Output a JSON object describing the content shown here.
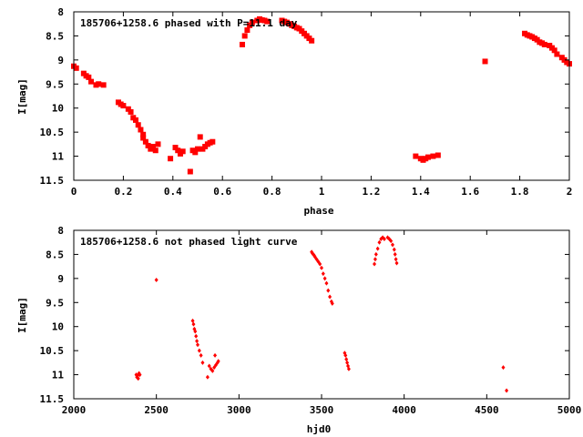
{
  "colors": {
    "series": "#ff0000",
    "axis": "#000000",
    "background": "#ffffff"
  },
  "chart_data": [
    {
      "type": "scatter",
      "title": "185706+1258.6 phased with P=11.1 day",
      "xlabel": "phase",
      "ylabel": "I[mag]",
      "xlim": [
        0,
        2
      ],
      "ylim": [
        11.5,
        8
      ],
      "y_inverted": true,
      "grid": false,
      "legend": "none",
      "marker": "filled-square",
      "xticks": [
        "0",
        "0.2",
        "0.4",
        "0.6",
        "0.8",
        "1",
        "1.2",
        "1.4",
        "1.6",
        "1.8",
        "2"
      ],
      "yticks": [
        "8",
        "8.5",
        "9",
        "9.5",
        "10",
        "10.5",
        "11",
        "11.5"
      ],
      "points": [
        [
          0.0,
          9.13
        ],
        [
          0.01,
          9.17
        ],
        [
          0.04,
          9.28
        ],
        [
          0.05,
          9.33
        ],
        [
          0.06,
          9.36
        ],
        [
          0.07,
          9.45
        ],
        [
          0.09,
          9.52
        ],
        [
          0.1,
          9.5
        ],
        [
          0.12,
          9.52
        ],
        [
          0.18,
          9.88
        ],
        [
          0.19,
          9.92
        ],
        [
          0.2,
          9.95
        ],
        [
          0.22,
          10.02
        ],
        [
          0.23,
          10.08
        ],
        [
          0.24,
          10.2
        ],
        [
          0.25,
          10.25
        ],
        [
          0.26,
          10.35
        ],
        [
          0.27,
          10.45
        ],
        [
          0.28,
          10.55
        ],
        [
          0.28,
          10.62
        ],
        [
          0.29,
          10.7
        ],
        [
          0.3,
          10.78
        ],
        [
          0.31,
          10.85
        ],
        [
          0.32,
          10.8
        ],
        [
          0.33,
          10.88
        ],
        [
          0.34,
          10.75
        ],
        [
          0.39,
          11.05
        ],
        [
          0.41,
          10.82
        ],
        [
          0.42,
          10.88
        ],
        [
          0.43,
          10.95
        ],
        [
          0.44,
          10.9
        ],
        [
          0.47,
          11.32
        ],
        [
          0.48,
          10.88
        ],
        [
          0.49,
          10.92
        ],
        [
          0.5,
          10.85
        ],
        [
          0.51,
          10.6
        ],
        [
          0.52,
          10.85
        ],
        [
          0.53,
          10.8
        ],
        [
          0.54,
          10.75
        ],
        [
          0.55,
          10.72
        ],
        [
          0.56,
          10.7
        ],
        [
          0.68,
          8.68
        ],
        [
          0.69,
          8.5
        ],
        [
          0.7,
          8.38
        ],
        [
          0.71,
          8.28
        ],
        [
          0.72,
          8.22
        ],
        [
          0.74,
          8.18
        ],
        [
          0.75,
          8.15
        ],
        [
          0.76,
          8.17
        ],
        [
          0.77,
          8.18
        ],
        [
          0.78,
          8.2
        ],
        [
          0.84,
          8.18
        ],
        [
          0.85,
          8.2
        ],
        [
          0.86,
          8.22
        ],
        [
          0.87,
          8.25
        ],
        [
          0.88,
          8.28
        ],
        [
          0.89,
          8.3
        ],
        [
          0.9,
          8.33
        ],
        [
          0.91,
          8.35
        ],
        [
          0.92,
          8.4
        ],
        [
          0.93,
          8.45
        ],
        [
          0.94,
          8.5
        ],
        [
          0.95,
          8.55
        ],
        [
          0.96,
          8.6
        ],
        [
          1.38,
          11.0
        ],
        [
          1.4,
          11.05
        ],
        [
          1.41,
          11.08
        ],
        [
          1.42,
          11.05
        ],
        [
          1.43,
          11.02
        ],
        [
          1.45,
          11.0
        ],
        [
          1.47,
          10.98
        ],
        [
          1.66,
          9.03
        ],
        [
          1.82,
          8.45
        ],
        [
          1.83,
          8.48
        ],
        [
          1.84,
          8.5
        ],
        [
          1.85,
          8.52
        ],
        [
          1.86,
          8.55
        ],
        [
          1.87,
          8.58
        ],
        [
          1.88,
          8.63
        ],
        [
          1.89,
          8.65
        ],
        [
          1.9,
          8.68
        ],
        [
          1.92,
          8.7
        ],
        [
          1.93,
          8.75
        ],
        [
          1.94,
          8.8
        ],
        [
          1.95,
          8.88
        ],
        [
          1.97,
          8.95
        ],
        [
          1.98,
          9.0
        ],
        [
          1.99,
          9.05
        ],
        [
          2.0,
          9.08
        ]
      ]
    },
    {
      "type": "scatter",
      "title": "185706+1258.6 not phased light curve",
      "xlabel": "hjd0",
      "ylabel": "I[mag]",
      "xlim": [
        2000,
        5000
      ],
      "ylim": [
        11.5,
        8
      ],
      "y_inverted": true,
      "grid": false,
      "legend": "none",
      "marker": "small-diamond",
      "xticks": [
        "2000",
        "2500",
        "3000",
        "3500",
        "4000",
        "4500",
        "5000"
      ],
      "yticks": [
        "8",
        "8.5",
        "9",
        "9.5",
        "10",
        "10.5",
        "11",
        "11.5"
      ],
      "points": [
        [
          2378,
          11.0
        ],
        [
          2382,
          11.05
        ],
        [
          2386,
          11.02
        ],
        [
          2390,
          11.08
        ],
        [
          2395,
          10.97
        ],
        [
          2400,
          11.0
        ],
        [
          2500,
          9.03
        ],
        [
          2720,
          9.88
        ],
        [
          2725,
          9.95
        ],
        [
          2730,
          10.05
        ],
        [
          2735,
          10.1
        ],
        [
          2740,
          10.2
        ],
        [
          2745,
          10.3
        ],
        [
          2750,
          10.38
        ],
        [
          2760,
          10.5
        ],
        [
          2770,
          10.6
        ],
        [
          2780,
          10.75
        ],
        [
          2810,
          11.05
        ],
        [
          2820,
          10.82
        ],
        [
          2830,
          10.88
        ],
        [
          2840,
          10.92
        ],
        [
          2850,
          10.85
        ],
        [
          2855,
          10.6
        ],
        [
          2860,
          10.8
        ],
        [
          2870,
          10.75
        ],
        [
          2875,
          10.72
        ],
        [
          3440,
          8.45
        ],
        [
          3445,
          8.48
        ],
        [
          3450,
          8.5
        ],
        [
          3455,
          8.52
        ],
        [
          3460,
          8.55
        ],
        [
          3470,
          8.6
        ],
        [
          3480,
          8.65
        ],
        [
          3490,
          8.7
        ],
        [
          3500,
          8.78
        ],
        [
          3510,
          8.9
        ],
        [
          3520,
          9.0
        ],
        [
          3530,
          9.1
        ],
        [
          3540,
          9.25
        ],
        [
          3550,
          9.38
        ],
        [
          3560,
          9.48
        ],
        [
          3565,
          9.52
        ],
        [
          3640,
          10.55
        ],
        [
          3645,
          10.6
        ],
        [
          3650,
          10.68
        ],
        [
          3655,
          10.75
        ],
        [
          3660,
          10.82
        ],
        [
          3665,
          10.88
        ],
        [
          3820,
          8.7
        ],
        [
          3825,
          8.6
        ],
        [
          3830,
          8.5
        ],
        [
          3840,
          8.38
        ],
        [
          3850,
          8.25
        ],
        [
          3860,
          8.18
        ],
        [
          3870,
          8.15
        ],
        [
          3880,
          8.18
        ],
        [
          3900,
          8.15
        ],
        [
          3910,
          8.18
        ],
        [
          3920,
          8.22
        ],
        [
          3930,
          8.3
        ],
        [
          3940,
          8.4
        ],
        [
          3945,
          8.5
        ],
        [
          3950,
          8.6
        ],
        [
          3955,
          8.68
        ],
        [
          4600,
          10.85
        ],
        [
          4620,
          11.33
        ]
      ]
    }
  ]
}
